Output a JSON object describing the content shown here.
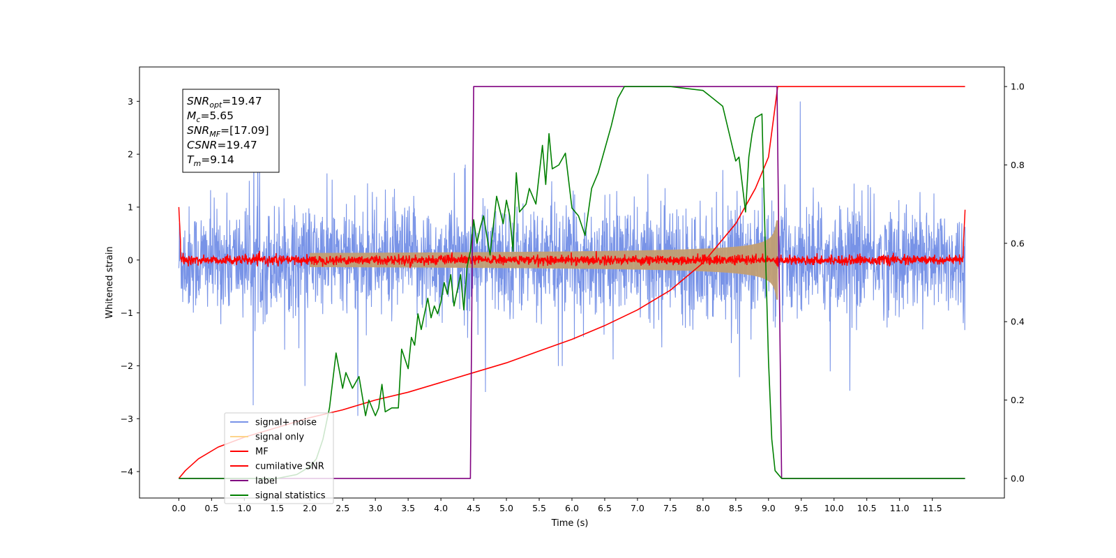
{
  "chart_data": {
    "type": "line",
    "xlabel": "Time (s)",
    "ylabel": "Whitened strain",
    "xlim": [
      -0.6,
      12.6
    ],
    "ylim": [
      -4.5,
      3.65
    ],
    "y2lim": [
      -0.05,
      1.05
    ],
    "x_ticks": [
      "0.0",
      "0.5",
      "1.0",
      "1.5",
      "2.0",
      "2.5",
      "3.0",
      "3.5",
      "4.0",
      "4.5",
      "5.0",
      "5.5",
      "6.0",
      "6.5",
      "7.0",
      "7.5",
      "8.0",
      "8.5",
      "9.0",
      "9.5",
      "10.0",
      "10.5",
      "11.0",
      "11.5"
    ],
    "y_ticks": [
      "3",
      "2",
      "1",
      "0",
      "−1",
      "−2",
      "−3",
      "−4"
    ],
    "y2_ticks": [
      "1.0",
      "0.8",
      "0.6",
      "0.4",
      "0.2",
      "0.0"
    ],
    "annotation": [
      {
        "sym": "SNR",
        "sub": "opt",
        "val": "=19.47"
      },
      {
        "sym": "M",
        "sub": "c",
        "val": "=5.65"
      },
      {
        "sym": "SNR",
        "sub": "MF",
        "val": "=[17.09]"
      },
      {
        "sym": "CSNR",
        "sub": "",
        "val": "=19.47"
      },
      {
        "sym": "T",
        "sub": "m",
        "val": "=9.14"
      }
    ],
    "legend_position": "lower-left",
    "series": [
      {
        "name": "signal+ noise",
        "color": "#7893e7",
        "axis": "left",
        "description": "noise band approx ±1.2 with spikes to ±3.3 over t=0..12.0"
      },
      {
        "name": "signal only",
        "color": "#fdd48a",
        "axis": "left",
        "description": "chirp envelope growing from ±0.05 at t=2 to ±0.8 at t=9.1"
      },
      {
        "name": "MF",
        "color": "#ff0000",
        "axis": "left",
        "description": "fluctuating near 0 with amplitude about 0.1, spikes to 1 at t=0 and t=12"
      },
      {
        "name": "cumilative SNR",
        "color": "#ff0000",
        "axis": "right",
        "x": [
          0.0,
          0.1,
          0.3,
          0.6,
          1.0,
          1.5,
          2.0,
          2.5,
          3.0,
          3.5,
          4.0,
          4.5,
          5.0,
          5.5,
          6.0,
          6.5,
          7.0,
          7.5,
          8.0,
          8.5,
          8.8,
          9.0,
          9.14,
          9.2,
          12.0
        ],
        "y": [
          0.0,
          0.02,
          0.05,
          0.08,
          0.105,
          0.13,
          0.155,
          0.175,
          0.2,
          0.22,
          0.245,
          0.27,
          0.295,
          0.325,
          0.355,
          0.39,
          0.43,
          0.48,
          0.55,
          0.65,
          0.74,
          0.82,
          1.0,
          1.0,
          1.0
        ]
      },
      {
        "name": "label",
        "color": "#800080",
        "axis": "right",
        "x": [
          0.0,
          4.45,
          4.5,
          9.13,
          9.2,
          12.0
        ],
        "y": [
          0.0,
          0.0,
          1.0,
          1.0,
          0.0,
          0.0
        ]
      },
      {
        "name": "signal statistics",
        "color": "#008000",
        "axis": "right",
        "x": [
          0.0,
          1.5,
          1.8,
          2.0,
          2.1,
          2.2,
          2.3,
          2.35,
          2.4,
          2.5,
          2.55,
          2.65,
          2.75,
          2.85,
          2.9,
          3.0,
          3.05,
          3.1,
          3.15,
          3.25,
          3.35,
          3.4,
          3.5,
          3.55,
          3.6,
          3.65,
          3.7,
          3.8,
          3.85,
          3.9,
          3.95,
          4.0,
          4.05,
          4.1,
          4.15,
          4.2,
          4.3,
          4.35,
          4.4,
          4.45,
          4.5,
          4.55,
          4.6,
          4.65,
          4.75,
          4.85,
          4.95,
          5.0,
          5.05,
          5.1,
          5.15,
          5.2,
          5.3,
          5.35,
          5.45,
          5.55,
          5.6,
          5.65,
          5.7,
          5.8,
          5.9,
          6.0,
          6.1,
          6.2,
          6.3,
          6.4,
          6.5,
          6.6,
          6.7,
          6.8,
          6.9,
          7.0,
          7.2,
          7.5,
          8.0,
          8.3,
          8.4,
          8.5,
          8.55,
          8.6,
          8.65,
          8.7,
          8.75,
          8.8,
          8.9,
          8.95,
          9.0,
          9.05,
          9.1,
          9.15,
          9.2,
          9.3,
          9.5,
          12.0
        ],
        "y": [
          0.0,
          0.0,
          0.01,
          0.03,
          0.05,
          0.1,
          0.18,
          0.25,
          0.32,
          0.23,
          0.27,
          0.23,
          0.26,
          0.16,
          0.2,
          0.16,
          0.18,
          0.24,
          0.17,
          0.18,
          0.18,
          0.33,
          0.28,
          0.36,
          0.34,
          0.42,
          0.38,
          0.46,
          0.41,
          0.44,
          0.42,
          0.45,
          0.5,
          0.47,
          0.52,
          0.44,
          0.52,
          0.43,
          0.54,
          0.58,
          0.66,
          0.6,
          0.64,
          0.67,
          0.57,
          0.72,
          0.65,
          0.71,
          0.67,
          0.58,
          0.78,
          0.68,
          0.7,
          0.74,
          0.7,
          0.85,
          0.75,
          0.88,
          0.79,
          0.8,
          0.83,
          0.69,
          0.67,
          0.62,
          0.74,
          0.78,
          0.84,
          0.9,
          0.97,
          1.0,
          1.0,
          1.0,
          1.0,
          1.0,
          0.99,
          0.95,
          0.88,
          0.81,
          0.82,
          0.75,
          0.68,
          0.82,
          0.88,
          0.92,
          0.93,
          0.6,
          0.3,
          0.1,
          0.02,
          0.01,
          0.0,
          0.0,
          0.0,
          0.0
        ]
      }
    ]
  }
}
